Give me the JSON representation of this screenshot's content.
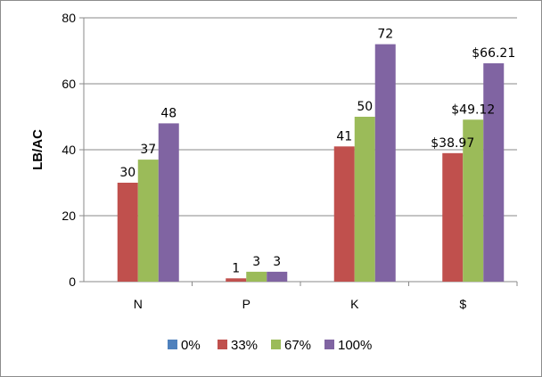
{
  "chart_data": {
    "type": "bar",
    "ylabel": "LB/AC",
    "xlabel": "",
    "ylim": [
      0,
      80
    ],
    "yticks": [
      0,
      20,
      40,
      60,
      80
    ],
    "grid": true,
    "legend_position": "bottom",
    "categories": [
      "N",
      "P",
      "K",
      "$"
    ],
    "series": [
      {
        "name": "0%",
        "color": "#4f81bd",
        "values": [
          0,
          0,
          0,
          0
        ],
        "labels": [
          "",
          "",
          "",
          ""
        ]
      },
      {
        "name": "33%",
        "color": "#c0504d",
        "values": [
          30,
          1,
          41,
          38.97
        ],
        "labels": [
          "30",
          "1",
          "41",
          "$38.97"
        ]
      },
      {
        "name": "67%",
        "color": "#9bbb59",
        "values": [
          37,
          3,
          50,
          49.12
        ],
        "labels": [
          "37",
          "3",
          "50",
          "$49.12"
        ]
      },
      {
        "name": "100%",
        "color": "#8064a2",
        "values": [
          48,
          3,
          72,
          66.21
        ],
        "labels": [
          "48",
          "3",
          "72",
          "$66.21"
        ]
      }
    ]
  }
}
